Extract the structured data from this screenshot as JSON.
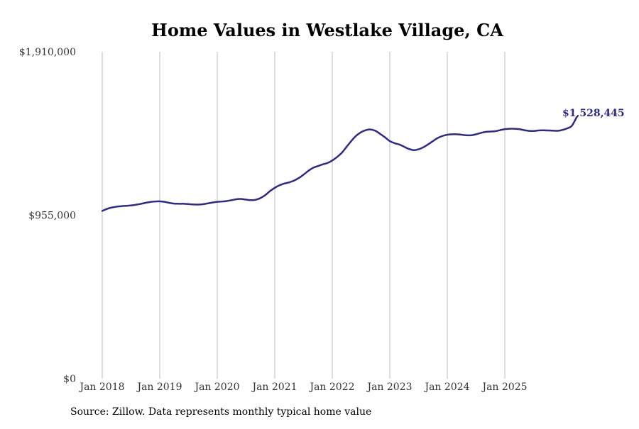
{
  "chart_data": {
    "type": "line",
    "title": "Home Values in Westlake Village, CA",
    "source": "Source: Zillow. Data represents monthly typical home value",
    "xlabel": "",
    "ylabel": "",
    "ylim": [
      0,
      1910000
    ],
    "y_ticks": [
      {
        "value": 0,
        "label": "$0"
      },
      {
        "value": 955000,
        "label": "$955,000"
      },
      {
        "value": 1910000,
        "label": "$1,910,000"
      }
    ],
    "x_ticks": [
      {
        "label": "Jan 2018",
        "index": 0
      },
      {
        "label": "Jan 2019",
        "index": 12
      },
      {
        "label": "Jan 2020",
        "index": 24
      },
      {
        "label": "Jan 2021",
        "index": 36
      },
      {
        "label": "Jan 2022",
        "index": 48
      },
      {
        "label": "Jan 2023",
        "index": 60
      },
      {
        "label": "Jan 2024",
        "index": 72
      },
      {
        "label": "Jan 2025",
        "index": 84
      }
    ],
    "grid": "vertical",
    "line_color": "#2e2a8c",
    "end_label": "$1,528,445",
    "series": [
      {
        "name": "Typical home value",
        "start": "Jan 2018",
        "frequency": "monthly",
        "values": [
          980000,
          992000,
          1000000,
          1005000,
          1008000,
          1010000,
          1012000,
          1016000,
          1021000,
          1027000,
          1032000,
          1035000,
          1036000,
          1033000,
          1027000,
          1023000,
          1022000,
          1022000,
          1020000,
          1018000,
          1017000,
          1019000,
          1024000,
          1029000,
          1033000,
          1035000,
          1038000,
          1043000,
          1048000,
          1050000,
          1046000,
          1043000,
          1045000,
          1055000,
          1072000,
          1096000,
          1115000,
          1130000,
          1140000,
          1147000,
          1157000,
          1172000,
          1192000,
          1214000,
          1232000,
          1242000,
          1252000,
          1260000,
          1275000,
          1295000,
          1320000,
          1355000,
          1390000,
          1420000,
          1440000,
          1452000,
          1456000,
          1448000,
          1430000,
          1410000,
          1388000,
          1376000,
          1368000,
          1355000,
          1342000,
          1335000,
          1340000,
          1352000,
          1369000,
          1388000,
          1406000,
          1418000,
          1425000,
          1428000,
          1428000,
          1425000,
          1422000,
          1422000,
          1428000,
          1436000,
          1442000,
          1444000,
          1446000,
          1452000,
          1458000,
          1460000,
          1460000,
          1458000,
          1452000,
          1448000,
          1447000,
          1450000,
          1451000,
          1450000,
          1449000,
          1448000,
          1453000,
          1462000,
          1478000,
          1528445
        ]
      }
    ]
  }
}
